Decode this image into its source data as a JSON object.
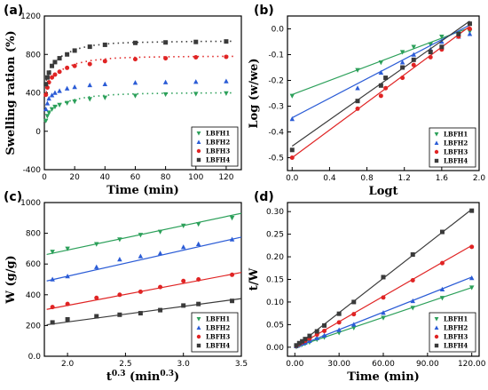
{
  "colors": {
    "LBFH1": "#2ca05a",
    "LBFH2": "#2b5cd6",
    "LBFH3": "#e02424",
    "LBFH4": "#3a3a3a"
  },
  "chart_data": [
    {
      "id": "a",
      "panel_label": "(a)",
      "type": "scatter",
      "xlabel": "Time (min)",
      "ylabel": "Swelling ration (%)",
      "xlim": [
        0,
        130
      ],
      "ylim": [
        -400,
        1200
      ],
      "xticks": [
        0,
        20,
        40,
        60,
        80,
        100,
        120
      ],
      "yticks": [
        -400,
        0,
        400,
        800,
        1200
      ],
      "legend_position": "bottom-right",
      "series": [
        {
          "name": "LBFH1",
          "key": "LBFH1",
          "marker": "triangle-down",
          "x": [
            1,
            2,
            3,
            5,
            7,
            10,
            15,
            20,
            30,
            40,
            60,
            80,
            100,
            120
          ],
          "y": [
            110,
            160,
            195,
            230,
            255,
            275,
            295,
            310,
            335,
            350,
            370,
            385,
            390,
            395
          ],
          "fit": {
            "type": "dotted",
            "x": [
              0,
              5,
              10,
              20,
              30,
              45,
              60,
              80,
              100,
              125
            ],
            "y": [
              100,
              230,
              285,
              330,
              360,
              380,
              390,
              395,
              398,
              400
            ]
          }
        },
        {
          "name": "LBFH2",
          "key": "LBFH2",
          "marker": "triangle-up",
          "x": [
            1,
            2,
            3,
            5,
            7,
            10,
            15,
            20,
            30,
            40,
            60,
            80,
            100,
            120
          ],
          "y": [
            230,
            290,
            340,
            375,
            400,
            420,
            445,
            460,
            480,
            490,
            505,
            510,
            515,
            520
          ],
          "fit": null
        },
        {
          "name": "LBFH3",
          "key": "LBFH3",
          "marker": "circle",
          "x": [
            1,
            2,
            3,
            5,
            7,
            10,
            15,
            20,
            30,
            40,
            60,
            80,
            100,
            120
          ],
          "y": [
            380,
            455,
            510,
            560,
            590,
            620,
            660,
            680,
            700,
            730,
            750,
            760,
            770,
            775
          ],
          "fit": {
            "type": "dotted",
            "x": [
              0,
              5,
              10,
              20,
              30,
              45,
              60,
              80,
              100,
              125
            ],
            "y": [
              360,
              560,
              630,
              700,
              735,
              760,
              770,
              775,
              778,
              780
            ]
          }
        },
        {
          "name": "LBFH4",
          "key": "LBFH4",
          "marker": "square",
          "x": [
            1,
            2,
            3,
            5,
            7,
            10,
            15,
            20,
            30,
            40,
            60,
            80,
            100,
            120
          ],
          "y": [
            490,
            560,
            610,
            680,
            720,
            760,
            800,
            840,
            880,
            900,
            920,
            925,
            930,
            935
          ],
          "fit": {
            "type": "dotted",
            "x": [
              0,
              5,
              10,
              20,
              30,
              45,
              60,
              80,
              100,
              125
            ],
            "y": [
              480,
              680,
              770,
              850,
              890,
              915,
              925,
              930,
              935,
              937
            ]
          }
        }
      ]
    },
    {
      "id": "b",
      "panel_label": "(b)",
      "type": "scatter",
      "xlabel": "Logt",
      "ylabel": "Log (w/we)",
      "xlim": [
        -0.05,
        2.0
      ],
      "ylim": [
        -0.55,
        0.05
      ],
      "xticks": [
        0.0,
        0.4,
        0.8,
        1.2,
        1.6,
        2.0
      ],
      "yticks": [
        -0.5,
        -0.4,
        -0.3,
        -0.2,
        -0.1,
        0.0
      ],
      "legend_position": "bottom-right",
      "series": [
        {
          "name": "LBFH1",
          "key": "LBFH1",
          "marker": "triangle-down",
          "x": [
            0.0,
            0.7,
            0.95,
            1.18,
            1.3,
            1.48,
            1.6,
            1.78,
            1.9
          ],
          "y": [
            -0.26,
            -0.16,
            -0.13,
            -0.09,
            -0.07,
            -0.06,
            -0.03,
            -0.02,
            -0.01
          ],
          "fit": {
            "type": "line",
            "x": [
              0.0,
              1.9
            ],
            "y": [
              -0.255,
              0.005
            ]
          }
        },
        {
          "name": "LBFH2",
          "key": "LBFH2",
          "marker": "triangle-up",
          "x": [
            0.0,
            0.7,
            0.95,
            1.18,
            1.3,
            1.48,
            1.6,
            1.78,
            1.9
          ],
          "y": [
            -0.35,
            -0.23,
            -0.17,
            -0.13,
            -0.1,
            -0.08,
            -0.05,
            -0.03,
            -0.02
          ],
          "fit": {
            "type": "line",
            "x": [
              0.0,
              1.9
            ],
            "y": [
              -0.345,
              0.015
            ]
          }
        },
        {
          "name": "LBFH3",
          "key": "LBFH3",
          "marker": "circle",
          "x": [
            0.0,
            0.7,
            0.95,
            1.0,
            1.18,
            1.3,
            1.48,
            1.6,
            1.78,
            1.9
          ],
          "y": [
            -0.5,
            -0.31,
            -0.26,
            -0.23,
            -0.19,
            -0.14,
            -0.11,
            -0.08,
            -0.03,
            0.0
          ],
          "fit": {
            "type": "line",
            "x": [
              0.0,
              1.9
            ],
            "y": [
              -0.5,
              0.01
            ]
          }
        },
        {
          "name": "LBFH4",
          "key": "LBFH4",
          "marker": "square",
          "x": [
            0.0,
            0.7,
            0.95,
            1.0,
            1.18,
            1.3,
            1.48,
            1.6,
            1.78,
            1.9
          ],
          "y": [
            -0.47,
            -0.28,
            -0.22,
            -0.19,
            -0.15,
            -0.12,
            -0.09,
            -0.07,
            -0.02,
            0.02
          ],
          "fit": {
            "type": "line",
            "x": [
              0.0,
              1.9
            ],
            "y": [
              -0.455,
              0.03
            ]
          }
        }
      ]
    },
    {
      "id": "c",
      "panel_label": "(c)",
      "type": "scatter",
      "xlabel": "t^0.3 (min^0.3)",
      "xlabel_base": "t",
      "xlabel_sup": "0.3",
      "xlabel_mid": " (min",
      "xlabel_sup2": "0.3",
      "xlabel_end": ")",
      "ylabel": "W (g/g)",
      "xlim": [
        1.8,
        3.5
      ],
      "ylim": [
        0,
        1000
      ],
      "xticks": [
        2.0,
        2.5,
        3.0,
        3.5
      ],
      "yticks": [
        0,
        200,
        400,
        600,
        800,
        1000
      ],
      "legend_position": "bottom-right",
      "series": [
        {
          "name": "LBFH1",
          "key": "LBFH1",
          "marker": "triangle-down",
          "x": [
            1.87,
            2.0,
            2.25,
            2.45,
            2.63,
            2.8,
            3.0,
            3.13,
            3.42
          ],
          "y": [
            680,
            700,
            730,
            760,
            790,
            810,
            850,
            860,
            900
          ],
          "fit": {
            "type": "line",
            "x": [
              1.82,
              3.5
            ],
            "y": [
              662,
              930
            ]
          }
        },
        {
          "name": "LBFH2",
          "key": "LBFH2",
          "marker": "triangle-up",
          "x": [
            1.87,
            2.0,
            2.25,
            2.45,
            2.63,
            2.8,
            3.0,
            3.13,
            3.42
          ],
          "y": [
            500,
            520,
            580,
            630,
            650,
            670,
            710,
            730,
            760
          ],
          "fit": {
            "type": "line",
            "x": [
              1.82,
              3.5
            ],
            "y": [
              490,
              775
            ]
          }
        },
        {
          "name": "LBFH3",
          "key": "LBFH3",
          "marker": "circle",
          "x": [
            1.87,
            2.0,
            2.25,
            2.45,
            2.63,
            2.8,
            3.0,
            3.13,
            3.42
          ],
          "y": [
            320,
            340,
            380,
            400,
            420,
            450,
            490,
            500,
            530
          ],
          "fit": {
            "type": "line",
            "x": [
              1.82,
              3.5
            ],
            "y": [
              305,
              545
            ]
          }
        },
        {
          "name": "LBFH4",
          "key": "LBFH4",
          "marker": "square",
          "x": [
            1.87,
            2.0,
            2.25,
            2.45,
            2.63,
            2.8,
            3.0,
            3.13,
            3.42
          ],
          "y": [
            220,
            240,
            260,
            270,
            280,
            300,
            330,
            340,
            360
          ],
          "fit": {
            "type": "line",
            "x": [
              1.82,
              3.5
            ],
            "y": [
              205,
              375
            ]
          }
        }
      ]
    },
    {
      "id": "d",
      "panel_label": "(d)",
      "type": "scatter",
      "xlabel": "Time (min)",
      "ylabel": "t/W",
      "xlim": [
        -5,
        125
      ],
      "ylim": [
        -0.02,
        0.32
      ],
      "xticks": [
        0,
        30,
        60,
        90,
        120
      ],
      "yticks": [
        0.0,
        0.05,
        0.1,
        0.15,
        0.2,
        0.25,
        0.3
      ],
      "legend_position": "bottom-right",
      "series": [
        {
          "name": "LBFH1",
          "key": "LBFH1",
          "marker": "triangle-down",
          "x": [
            1,
            3,
            5,
            7,
            10,
            15,
            20,
            30,
            40,
            60,
            80,
            100,
            120
          ],
          "y": [
            0.001,
            0.004,
            0.006,
            0.008,
            0.011,
            0.017,
            0.022,
            0.032,
            0.043,
            0.065,
            0.087,
            0.109,
            0.132
          ],
          "fit": {
            "type": "line",
            "x": [
              0,
              120
            ],
            "y": [
              0.0,
              0.132
            ]
          }
        },
        {
          "name": "LBFH2",
          "key": "LBFH2",
          "marker": "triangle-up",
          "x": [
            1,
            3,
            5,
            7,
            10,
            15,
            20,
            30,
            40,
            60,
            80,
            100,
            120
          ],
          "y": [
            0.002,
            0.005,
            0.008,
            0.01,
            0.014,
            0.02,
            0.026,
            0.038,
            0.05,
            0.076,
            0.102,
            0.128,
            0.153
          ],
          "fit": {
            "type": "line",
            "x": [
              0,
              120
            ],
            "y": [
              0.0,
              0.155
            ]
          }
        },
        {
          "name": "LBFH3",
          "key": "LBFH3",
          "marker": "circle",
          "x": [
            1,
            3,
            5,
            7,
            10,
            15,
            20,
            30,
            40,
            60,
            80,
            100,
            120
          ],
          "y": [
            0.003,
            0.007,
            0.011,
            0.014,
            0.019,
            0.028,
            0.036,
            0.055,
            0.073,
            0.11,
            0.148,
            0.186,
            0.222
          ],
          "fit": {
            "type": "line",
            "x": [
              0,
              120
            ],
            "y": [
              0.0,
              0.225
            ]
          }
        },
        {
          "name": "LBFH4",
          "key": "LBFH4",
          "marker": "square",
          "x": [
            1,
            3,
            5,
            7,
            10,
            15,
            20,
            30,
            40,
            60,
            80,
            100,
            120
          ],
          "y": [
            0.004,
            0.009,
            0.013,
            0.018,
            0.025,
            0.035,
            0.048,
            0.074,
            0.1,
            0.155,
            0.205,
            0.255,
            0.302
          ],
          "fit": {
            "type": "line",
            "x": [
              0,
              120
            ],
            "y": [
              0.0,
              0.305
            ]
          }
        }
      ]
    }
  ]
}
